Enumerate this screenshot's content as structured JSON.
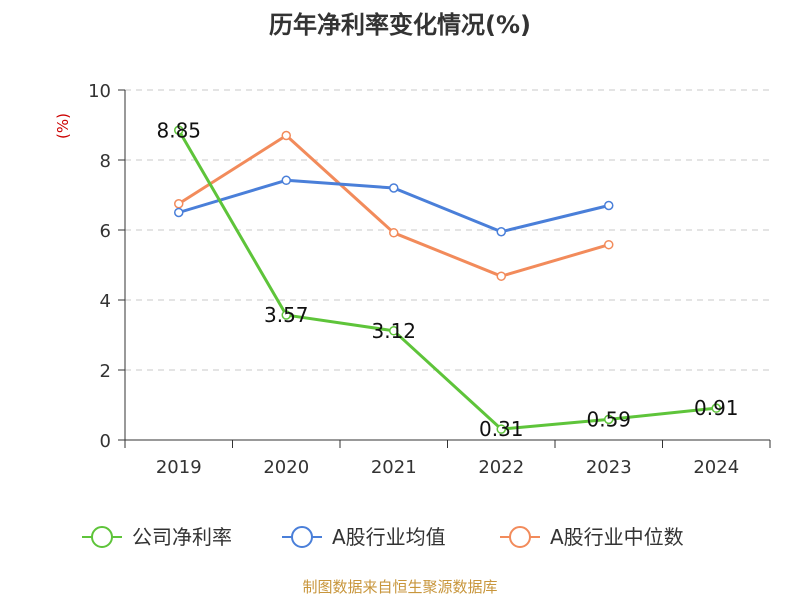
{
  "chart_data": {
    "type": "line",
    "title": "历年净利率变化情况(%)",
    "ylabel": "(%)",
    "xlabel": "",
    "categories": [
      "2019",
      "2020",
      "2021",
      "2022",
      "2023",
      "2024"
    ],
    "ylim": [
      0,
      10
    ],
    "yticks": [
      0,
      2,
      4,
      6,
      8,
      10
    ],
    "grid": true,
    "legend_position": "bottom",
    "series": [
      {
        "name": "公司净利率",
        "color": "#5ec43a",
        "values": [
          8.85,
          3.57,
          3.12,
          0.31,
          0.59,
          0.91
        ],
        "show_labels": true
      },
      {
        "name": "A股行业均值",
        "color": "#4a7fd9",
        "values": [
          6.5,
          7.42,
          7.2,
          5.95,
          6.7,
          null
        ],
        "show_labels": false
      },
      {
        "name": "A股行业中位数",
        "color": "#f28b5b",
        "values": [
          6.75,
          8.7,
          5.92,
          4.68,
          5.58,
          null
        ],
        "show_labels": false
      }
    ],
    "data_labels": [
      "8.85",
      "3.57",
      "3.12",
      "0.31",
      "0.59",
      "0.91"
    ],
    "source": "制图数据来自恒生聚源数据库"
  }
}
